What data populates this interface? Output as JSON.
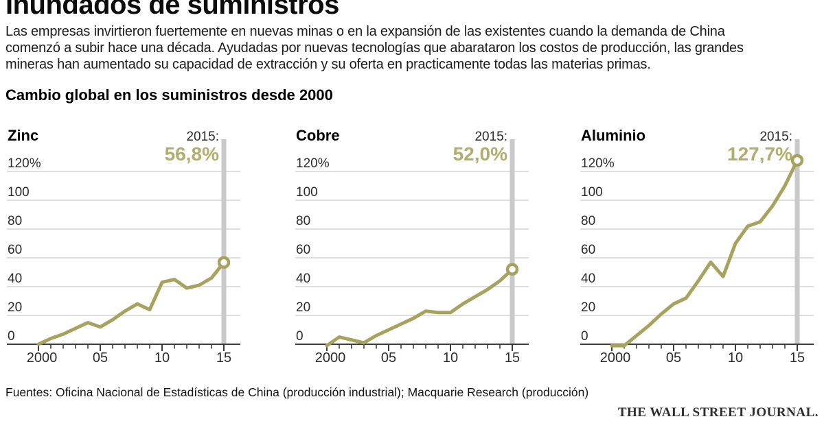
{
  "header": {
    "title": "Inundados de suministros",
    "description_lines": [
      "Las empresas invirtieron fuertemente en nuevas minas o en la expansión de las existentes cuando la demanda de China",
      "comenzó a subir hace una década. Ayudadas por nuevas tecnologías que abarataron los costos de producción, las grandes",
      "mineras han aumentado su capacidad de extracción y su oferta en practicamente todas las materias primas."
    ],
    "subtitle": "Cambio global en los suministros desde 2000"
  },
  "axis": {
    "grid_values": [
      120,
      100,
      80,
      60,
      40,
      20
    ],
    "y_ticks": [
      {
        "value": 120,
        "label": "120%"
      },
      {
        "value": 100,
        "label": "100"
      },
      {
        "value": 80,
        "label": "80"
      },
      {
        "value": 60,
        "label": "60"
      },
      {
        "value": 40,
        "label": "40"
      },
      {
        "value": 20,
        "label": "20"
      },
      {
        "value": 0,
        "label": "0"
      }
    ],
    "x_ticks": [
      {
        "index": 0,
        "label": "2000"
      },
      {
        "index": 5,
        "label": "05"
      },
      {
        "index": 10,
        "label": "10"
      },
      {
        "index": 15,
        "label": "15"
      }
    ]
  },
  "chart_data": [
    {
      "type": "line",
      "title": "Zinc",
      "x": [
        2000,
        2001,
        2002,
        2003,
        2004,
        2005,
        2006,
        2007,
        2008,
        2009,
        2010,
        2011,
        2012,
        2013,
        2014,
        2015
      ],
      "values": [
        0,
        4,
        7,
        11,
        15,
        12,
        17,
        23,
        28,
        24,
        43,
        45,
        39,
        41,
        46,
        56.8
      ],
      "end_label": "2015:",
      "end_value_label": "56,8%",
      "end_value": 56.8,
      "unit": "%",
      "ylim": [
        0,
        120
      ],
      "grid": true,
      "legend": "none"
    },
    {
      "type": "line",
      "title": "Cobre",
      "x": [
        2000,
        2001,
        2002,
        2003,
        2004,
        2005,
        2006,
        2007,
        2008,
        2009,
        2010,
        2011,
        2012,
        2013,
        2014,
        2015
      ],
      "values": [
        -1,
        5,
        3,
        1,
        6,
        10,
        14,
        18,
        23,
        22,
        22,
        28,
        33,
        38,
        44,
        52.0
      ],
      "end_label": "2015:",
      "end_value_label": "52,0%",
      "end_value": 52.0,
      "unit": "%",
      "ylim": [
        0,
        120
      ],
      "grid": true,
      "legend": "none"
    },
    {
      "type": "line",
      "title": "Aluminio",
      "x": [
        2000,
        2001,
        2002,
        2003,
        2004,
        2005,
        2006,
        2007,
        2008,
        2009,
        2010,
        2011,
        2012,
        2013,
        2014,
        2015
      ],
      "values": [
        -1,
        -1,
        6,
        13,
        21,
        28,
        32,
        44,
        57,
        47,
        70,
        82,
        85,
        96,
        110,
        127.7
      ],
      "end_label": "2015:",
      "end_value_label": "127,7%",
      "end_value": 127.7,
      "unit": "%",
      "ylim": [
        0,
        120
      ],
      "grid": true,
      "legend": "none"
    }
  ],
  "colors": {
    "line": "#a7a35f",
    "value_text": "#b1ad6d",
    "bar": "#c9c9c9",
    "grid": "#d4d4d4",
    "axis": "#3c3c3c",
    "label": "#2b2b2b"
  },
  "footer": {
    "sources": "Fuentes: Oficina Nacional de Estadísticas de China (producción industrial); Macquarie Research (producción)",
    "brand": "THE WALL STREET JOURNAL."
  }
}
